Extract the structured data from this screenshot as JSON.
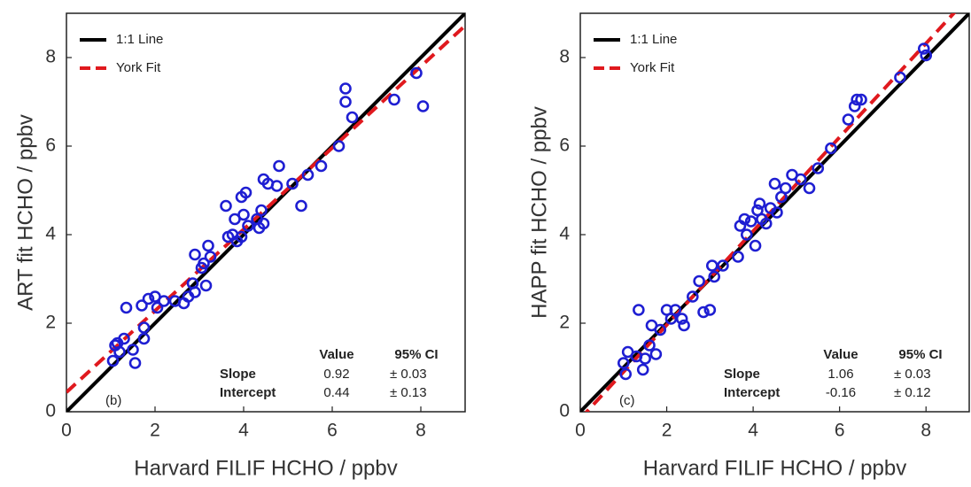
{
  "chart_data": [
    {
      "type": "scatter",
      "panel_label": "(b)",
      "xlabel": "Harvard FILIF HCHO / ppbv",
      "ylabel": "ART fit HCHO / ppbv",
      "xlim": [
        0,
        9
      ],
      "ylim": [
        0,
        9
      ],
      "xticks": [
        0,
        2,
        4,
        6,
        8
      ],
      "yticks": [
        0,
        2,
        4,
        6,
        8
      ],
      "legend": "upper left",
      "series": [
        {
          "kind": "points",
          "color": "#1e1ed2",
          "x": [
            1.05,
            1.1,
            1.15,
            1.2,
            1.3,
            1.35,
            1.5,
            1.55,
            1.7,
            1.75,
            1.75,
            1.85,
            2.0,
            2.05,
            2.2,
            2.45,
            2.65,
            2.75,
            2.85,
            2.9,
            2.9,
            3.05,
            3.1,
            3.15,
            3.2,
            3.25,
            3.6,
            3.65,
            3.75,
            3.8,
            3.85,
            3.95,
            3.95,
            4.0,
            4.05,
            4.1,
            4.3,
            4.35,
            4.4,
            4.45,
            4.45,
            4.55,
            4.75,
            4.8,
            5.1,
            5.3,
            5.45,
            5.75,
            6.15,
            6.3,
            6.3,
            6.45,
            7.4,
            7.9,
            8.05
          ],
          "values": [
            1.15,
            1.5,
            1.55,
            1.35,
            1.65,
            2.35,
            1.4,
            1.1,
            2.4,
            1.65,
            1.9,
            2.55,
            2.6,
            2.35,
            2.5,
            2.5,
            2.45,
            2.6,
            2.9,
            3.55,
            2.7,
            3.25,
            3.35,
            2.85,
            3.75,
            3.5,
            4.65,
            3.95,
            4.0,
            4.35,
            3.85,
            4.85,
            3.95,
            4.45,
            4.95,
            4.2,
            4.35,
            4.15,
            4.55,
            4.25,
            5.25,
            5.15,
            5.1,
            5.55,
            5.15,
            4.65,
            5.35,
            5.55,
            6.0,
            7.3,
            7.0,
            6.65,
            7.05,
            7.65,
            6.9
          ]
        },
        {
          "kind": "line",
          "name": "1:1 Line",
          "color": "#000000",
          "dash": false,
          "x": [
            0,
            9
          ],
          "values": [
            0,
            9
          ]
        },
        {
          "kind": "line",
          "name": "York Fit",
          "color": "#e0191e",
          "dash": true,
          "x": [
            0,
            9
          ],
          "values": [
            0.44,
            8.72
          ]
        }
      ],
      "table": {
        "header": [
          "Value",
          "95% CI"
        ],
        "rows": [
          [
            "Slope",
            "0.92",
            "± 0.03"
          ],
          [
            "Intercept",
            "0.44",
            "± 0.13"
          ]
        ]
      }
    },
    {
      "type": "scatter",
      "panel_label": "(c)",
      "xlabel": "Harvard FILIF HCHO / ppbv",
      "ylabel": "HAPP fit HCHO / ppbv",
      "xlim": [
        0,
        9
      ],
      "ylim": [
        0,
        9
      ],
      "xticks": [
        0,
        2,
        4,
        6,
        8
      ],
      "yticks": [
        0,
        2,
        4,
        6,
        8
      ],
      "legend": "upper left",
      "series": [
        {
          "kind": "points",
          "color": "#1e1ed2",
          "x": [
            1.0,
            1.05,
            1.1,
            1.3,
            1.35,
            1.45,
            1.5,
            1.6,
            1.65,
            1.75,
            1.85,
            2.0,
            2.1,
            2.2,
            2.35,
            2.4,
            2.6,
            2.75,
            2.85,
            3.0,
            3.05,
            3.1,
            3.3,
            3.65,
            3.7,
            3.8,
            3.85,
            3.95,
            4.05,
            4.1,
            4.15,
            4.2,
            4.3,
            4.4,
            4.5,
            4.55,
            4.65,
            4.75,
            4.9,
            5.1,
            5.3,
            5.5,
            5.8,
            6.2,
            6.35,
            6.4,
            6.5,
            7.4,
            7.95,
            8.0
          ],
          "values": [
            1.1,
            0.85,
            1.35,
            1.25,
            2.3,
            0.95,
            1.2,
            1.5,
            1.95,
            1.3,
            1.85,
            2.3,
            2.1,
            2.3,
            2.1,
            1.95,
            2.6,
            2.95,
            2.25,
            2.3,
            3.3,
            3.05,
            3.3,
            3.5,
            4.2,
            4.35,
            4.0,
            4.3,
            3.75,
            4.55,
            4.7,
            4.35,
            4.25,
            4.6,
            5.15,
            4.5,
            4.85,
            5.05,
            5.35,
            5.25,
            5.05,
            5.5,
            5.95,
            6.6,
            6.9,
            7.05,
            7.05,
            7.55,
            8.2,
            8.05
          ]
        },
        {
          "kind": "line",
          "name": "1:1 Line",
          "color": "#000000",
          "dash": false,
          "x": [
            0,
            9
          ],
          "values": [
            0,
            9
          ]
        },
        {
          "kind": "line",
          "name": "York Fit",
          "color": "#e0191e",
          "dash": true,
          "x": [
            0,
            9
          ],
          "values": [
            -0.16,
            9.38
          ]
        }
      ],
      "table": {
        "header": [
          "Value",
          "95% CI"
        ],
        "rows": [
          [
            "Slope",
            "1.06",
            "± 0.03"
          ],
          [
            "Intercept",
            "-0.16",
            "± 0.12"
          ]
        ]
      }
    }
  ]
}
